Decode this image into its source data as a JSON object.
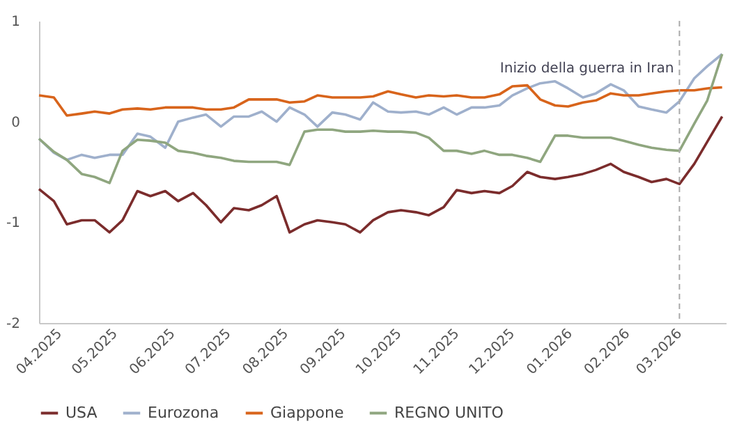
{
  "chart_data": {
    "type": "line",
    "x": [
      "2025-03-24",
      "2025-04-01",
      "2025-04-08",
      "2025-04-16",
      "2025-04-23",
      "2025-05-01",
      "2025-05-08",
      "2025-05-16",
      "2025-05-23",
      "2025-05-31",
      "2025-06-07",
      "2025-06-15",
      "2025-06-22",
      "2025-06-30",
      "2025-07-07",
      "2025-07-15",
      "2025-07-22",
      "2025-07-30",
      "2025-08-06",
      "2025-08-14",
      "2025-08-21",
      "2025-08-29",
      "2025-09-05",
      "2025-09-13",
      "2025-09-20",
      "2025-09-28",
      "2025-10-05",
      "2025-10-13",
      "2025-10-20",
      "2025-10-28",
      "2025-11-04",
      "2025-11-12",
      "2025-11-19",
      "2025-11-27",
      "2025-12-04",
      "2025-12-12",
      "2025-12-19",
      "2025-12-27",
      "2026-01-03",
      "2026-01-11",
      "2026-01-18",
      "2026-01-26",
      "2026-02-02",
      "2026-02-10",
      "2026-02-17",
      "2026-02-25",
      "2026-03-04",
      "2026-03-12",
      "2026-03-19",
      "2026-03-27"
    ],
    "series": [
      {
        "name": "USA",
        "color": "#7b2c2c",
        "values": [
          -0.67,
          -0.79,
          -1.02,
          -0.98,
          -0.98,
          -1.1,
          -0.98,
          -0.69,
          -0.74,
          -0.69,
          -0.79,
          -0.71,
          -0.83,
          -1.0,
          -0.86,
          -0.88,
          -0.83,
          -0.74,
          -1.1,
          -1.02,
          -0.98,
          -1.0,
          -1.02,
          -1.1,
          -0.98,
          -0.9,
          -0.88,
          -0.9,
          -0.93,
          -0.85,
          -0.68,
          -0.71,
          -0.69,
          -0.71,
          -0.64,
          -0.5,
          -0.55,
          -0.57,
          -0.55,
          -0.52,
          -0.48,
          -0.42,
          -0.5,
          -0.55,
          -0.6,
          -0.57,
          -0.62,
          -0.42,
          -0.2,
          0.05
        ]
      },
      {
        "name": "Eurozona",
        "color": "#9fb0cc",
        "values": [
          -0.17,
          -0.31,
          -0.38,
          -0.33,
          -0.36,
          -0.33,
          -0.33,
          -0.12,
          -0.15,
          -0.26,
          0.0,
          0.04,
          0.07,
          -0.05,
          0.05,
          0.05,
          0.1,
          0.0,
          0.14,
          0.07,
          -0.05,
          0.09,
          0.07,
          0.02,
          0.19,
          0.1,
          0.09,
          0.1,
          0.07,
          0.14,
          0.07,
          0.14,
          0.14,
          0.16,
          0.26,
          0.33,
          0.38,
          0.4,
          0.33,
          0.24,
          0.28,
          0.37,
          0.31,
          0.15,
          0.12,
          0.09,
          0.2,
          0.43,
          0.55,
          0.67
        ]
      },
      {
        "name": "Giappone",
        "color": "#d8641b",
        "values": [
          0.26,
          0.24,
          0.06,
          0.08,
          0.1,
          0.08,
          0.12,
          0.13,
          0.12,
          0.14,
          0.14,
          0.14,
          0.12,
          0.12,
          0.14,
          0.22,
          0.22,
          0.22,
          0.19,
          0.2,
          0.26,
          0.24,
          0.24,
          0.24,
          0.25,
          0.3,
          0.27,
          0.24,
          0.26,
          0.25,
          0.26,
          0.24,
          0.24,
          0.27,
          0.35,
          0.36,
          0.22,
          0.16,
          0.15,
          0.19,
          0.21,
          0.28,
          0.26,
          0.26,
          0.28,
          0.3,
          0.31,
          0.31,
          0.33,
          0.34
        ]
      },
      {
        "name": "REGNO UNITO",
        "color": "#8fa67f",
        "values": [
          -0.17,
          -0.3,
          -0.38,
          -0.52,
          -0.55,
          -0.61,
          -0.29,
          -0.18,
          -0.19,
          -0.21,
          -0.29,
          -0.31,
          -0.34,
          -0.36,
          -0.39,
          -0.4,
          -0.4,
          -0.4,
          -0.43,
          -0.1,
          -0.08,
          -0.08,
          -0.1,
          -0.1,
          -0.09,
          -0.1,
          -0.1,
          -0.11,
          -0.16,
          -0.29,
          -0.29,
          -0.32,
          -0.29,
          -0.33,
          -0.33,
          -0.36,
          -0.4,
          -0.14,
          -0.14,
          -0.16,
          -0.16,
          -0.16,
          -0.19,
          -0.23,
          -0.26,
          -0.28,
          -0.29,
          -0.02,
          0.21,
          0.67
        ]
      }
    ],
    "xlim": [
      "2025-03-24",
      "2026-03-29"
    ],
    "xticks": [
      {
        "value": "2025-04-01",
        "label": "04.2025"
      },
      {
        "value": "2025-05-01",
        "label": "05.2025"
      },
      {
        "value": "2025-06-01",
        "label": "06.2025"
      },
      {
        "value": "2025-07-01",
        "label": "07.2025"
      },
      {
        "value": "2025-08-01",
        "label": "08.2025"
      },
      {
        "value": "2025-09-01",
        "label": "09.2025"
      },
      {
        "value": "2025-10-01",
        "label": "10.2025"
      },
      {
        "value": "2025-11-01",
        "label": "11.2025"
      },
      {
        "value": "2025-12-01",
        "label": "12.2025"
      },
      {
        "value": "2026-01-01",
        "label": "01.2026"
      },
      {
        "value": "2026-02-01",
        "label": "02.2026"
      },
      {
        "value": "2026-03-01",
        "label": "03.2026"
      }
    ],
    "ylim": [
      -2,
      1
    ],
    "yticks": [
      -2,
      -1,
      0,
      1
    ],
    "ref_lines": [
      {
        "axis": "x",
        "value": "2026-03-04",
        "label": "Inizio della guerra in Iran",
        "color": "#aaaaaa",
        "line_style": "dashed"
      }
    ],
    "grid": false,
    "legend": "bottom",
    "marker": "none",
    "line_style": "solid"
  }
}
